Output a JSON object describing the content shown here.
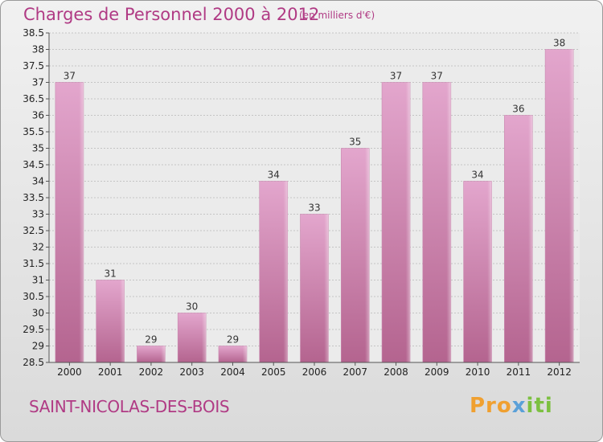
{
  "header": {
    "title": "Charges de Personnel 2000 à 2012",
    "subtitle": "(en milliers d'€)"
  },
  "footer": {
    "commune": "SAINT-NICOLAS-DES-BOIS",
    "logo": {
      "part1": "Pro",
      "part2": "x",
      "part3": "iti"
    }
  },
  "colors": {
    "accent": "#b03a84",
    "bar_top": "#e3a6cd",
    "bar_bottom": "#b4648f"
  },
  "chart_data": {
    "type": "bar",
    "title": "Charges de Personnel 2000 à 2012",
    "subtitle": "(en milliers d'€)",
    "categories": [
      "2000",
      "2001",
      "2002",
      "2003",
      "2004",
      "2005",
      "2006",
      "2007",
      "2008",
      "2009",
      "2010",
      "2011",
      "2012"
    ],
    "values": [
      37,
      31,
      29,
      30,
      29,
      34,
      33,
      35,
      37,
      37,
      34,
      36,
      38
    ],
    "labels": [
      "37",
      "31",
      "29",
      "30",
      "29",
      "34",
      "33",
      "35",
      "37",
      "37",
      "34",
      "36",
      "38"
    ],
    "ylim": [
      28.5,
      38.5
    ],
    "yticks": [
      "28.5",
      "29",
      "29.5",
      "30",
      "30.5",
      "31",
      "31.5",
      "32",
      "32.5",
      "33",
      "33.5",
      "34",
      "34.5",
      "35",
      "35.5",
      "36",
      "36.5",
      "37",
      "37.5",
      "38",
      "38.5"
    ],
    "grid": true,
    "xlabel": "",
    "ylabel": ""
  }
}
